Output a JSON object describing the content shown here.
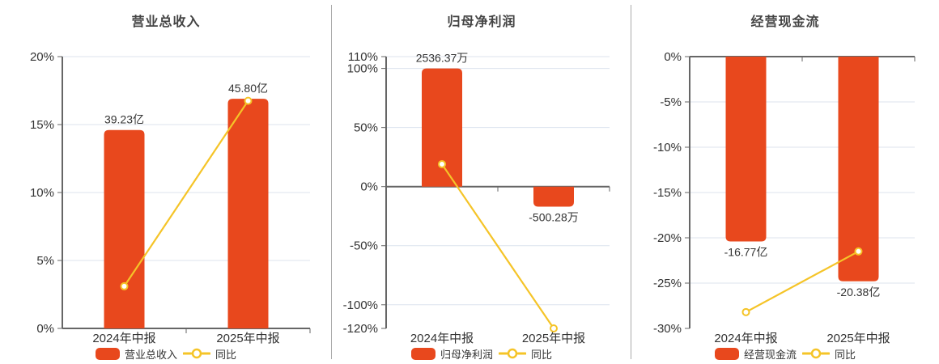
{
  "colors": {
    "bar": "#E8481D",
    "line": "#F5C428",
    "grid": "#DCE3EE",
    "axis": "#666666",
    "text": "#333333",
    "title": "#444444"
  },
  "chart_data": [
    {
      "type": "bar+line",
      "title": "营业总收入",
      "categories": [
        "2024年中报",
        "2025年中报"
      ],
      "y_axis": {
        "unit": "%",
        "min": 0,
        "max": 20,
        "ticks": [
          20,
          15,
          10,
          5,
          0
        ]
      },
      "grid": true,
      "legend_position": "bottom",
      "bar_series": {
        "name": "营业总收入",
        "value_labels": [
          "39.23亿",
          "45.80亿"
        ],
        "plotted_pct": [
          14.6,
          16.9
        ],
        "label_side": [
          "above",
          "above"
        ]
      },
      "line_series": {
        "name": "同比",
        "values_pct": [
          3.1,
          16.75
        ]
      }
    },
    {
      "type": "bar+line",
      "title": "归母净利润",
      "categories": [
        "2024年中报",
        "2025年中报"
      ],
      "y_axis": {
        "unit": "%",
        "min": -120,
        "max": 110,
        "ticks": [
          110,
          100,
          50,
          0,
          -50,
          -100,
          -120
        ]
      },
      "grid": true,
      "legend_position": "bottom",
      "bar_series": {
        "name": "归母净利润",
        "value_labels": [
          "2536.37万",
          "-500.28万"
        ],
        "plotted_pct": [
          100,
          -17
        ],
        "label_side": [
          "above",
          "below"
        ]
      },
      "line_series": {
        "name": "同比",
        "values_pct": [
          19,
          -120
        ]
      }
    },
    {
      "type": "bar+line",
      "title": "经营现金流",
      "categories": [
        "2024年中报",
        "2025年中报"
      ],
      "y_axis": {
        "unit": "%",
        "min": -30,
        "max": 0,
        "ticks": [
          0,
          -5,
          -10,
          -15,
          -20,
          -25,
          -30
        ]
      },
      "grid": true,
      "legend_position": "bottom",
      "bar_series": {
        "name": "经营现金流",
        "value_labels": [
          "-16.77亿",
          "-20.38亿"
        ],
        "plotted_pct": [
          -20.4,
          -24.8
        ],
        "label_side": [
          "below",
          "below"
        ]
      },
      "line_series": {
        "name": "同比",
        "values_pct": [
          -28.2,
          -21.5
        ]
      }
    }
  ]
}
